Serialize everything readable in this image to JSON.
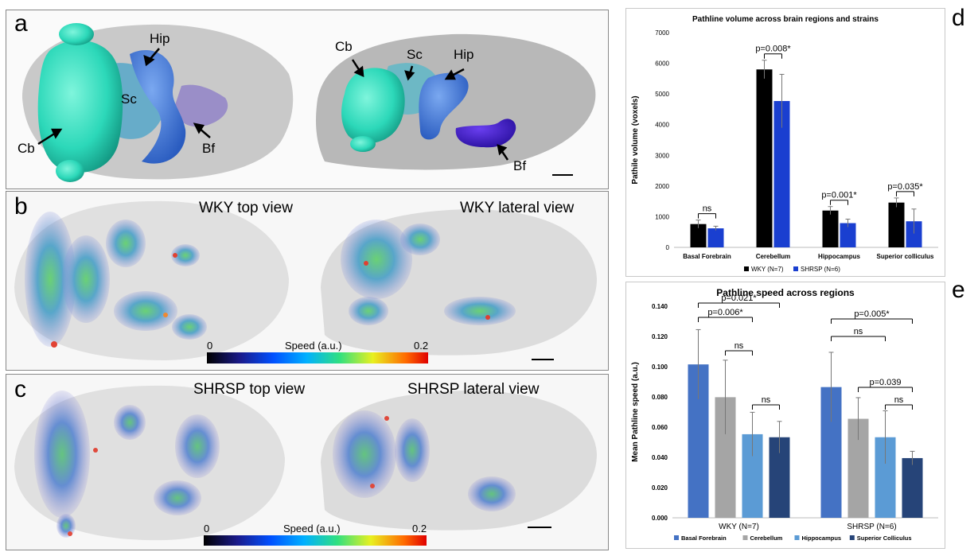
{
  "panel_labels": {
    "a": "a",
    "b": "b",
    "c": "c",
    "d": "d",
    "e": "e"
  },
  "panel_a": {
    "top_labels": {
      "cb": "Cb",
      "sc": "Sc",
      "hip": "Hip",
      "bf": "Bf"
    },
    "lateral_labels": {
      "cb": "Cb",
      "sc": "Sc",
      "hip": "Hip",
      "bf": "Bf"
    }
  },
  "panel_b": {
    "top_view": "WKY top view",
    "lateral_view": "WKY lateral view",
    "colorbar": {
      "min": "0",
      "label": "Speed (a.u.)",
      "max": "0.2"
    }
  },
  "panel_c": {
    "top_view": "SHRSP top view",
    "lateral_view": "SHRSP lateral view",
    "colorbar": {
      "min": "0",
      "label": "Speed (a.u.)",
      "max": "0.2"
    }
  },
  "chart_data": [
    {
      "id": "d",
      "type": "bar",
      "title": "Pathline volume across brain regions and strains",
      "ylabel": "Pathile volume (voxels)",
      "xlabel": "",
      "ylim": [
        0,
        7000
      ],
      "yticks": [
        "0",
        "1000",
        "2000",
        "3000",
        "4000",
        "5000",
        "6000",
        "7000"
      ],
      "categories": [
        "Basal Forebrain",
        "Cerebellum",
        "Hippocampus",
        "Superior colliculus"
      ],
      "series": [
        {
          "name": "WKY (N=7)",
          "color": "#000000",
          "values": [
            760,
            5800,
            1200,
            1460
          ],
          "errors": [
            130,
            300,
            130,
            150
          ]
        },
        {
          "name": "SHRSP (N=6)",
          "color": "#1a3fd0",
          "values": [
            620,
            4770,
            790,
            850
          ],
          "errors": [
            70,
            870,
            130,
            400
          ]
        }
      ],
      "annotations": [
        "ns",
        "p=0.008*",
        "p=0.001*",
        "p=0.035*"
      ],
      "legend": "bottom",
      "grid": false
    },
    {
      "id": "e",
      "type": "bar",
      "title": "Pathline speed across regions",
      "ylabel": "Mean Pathline speed (a.u.)",
      "xlabel": "",
      "ylim": [
        0,
        0.14
      ],
      "yticks": [
        "0.000",
        "0.020",
        "0.040",
        "0.060",
        "0.080",
        "0.100",
        "0.120",
        "0.140"
      ],
      "categories": [
        "WKY (N=7)",
        "SHRSP (N=6)"
      ],
      "series": [
        {
          "name": "Basal Forebrain",
          "color": "#4472c4",
          "values": [
            0.1015,
            0.0865
          ],
          "errors": [
            0.023,
            0.023
          ]
        },
        {
          "name": "Cerebellum",
          "color": "#a5a5a5",
          "values": [
            0.0798,
            0.0655
          ],
          "errors": [
            0.0245,
            0.014
          ]
        },
        {
          "name": "Hippocampus",
          "color": "#5b9bd5",
          "values": [
            0.0553,
            0.0533
          ],
          "errors": [
            0.0145,
            0.0175
          ]
        },
        {
          "name": "Superior Colliculus",
          "color": "#264478",
          "values": [
            0.0533,
            0.0395
          ],
          "errors": [
            0.0105,
            0.0045
          ]
        }
      ],
      "annotations": [
        "p=0.021*",
        "p=0.006*",
        "ns",
        "ns",
        "p=0.005*",
        "ns",
        "p=0.039",
        "ns"
      ],
      "legend": "bottom",
      "grid": false
    }
  ]
}
